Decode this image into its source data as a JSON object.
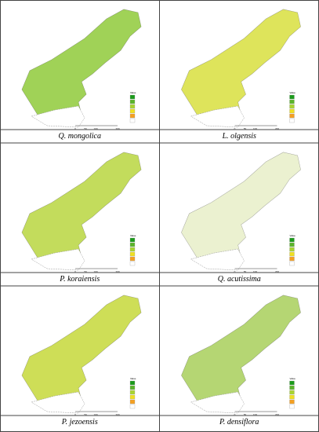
{
  "panels": [
    {
      "caption": "Q. mongolica",
      "legend_title": "Value",
      "scale_labels": [
        "0",
        "50",
        "100",
        "200"
      ]
    },
    {
      "caption": "L. olgensis",
      "legend_title": "Value",
      "scale_labels": [
        "0",
        "50",
        "100",
        "200"
      ]
    },
    {
      "caption": "P. koraiensis",
      "legend_title": "Value",
      "scale_labels": [
        "0",
        "50",
        "100",
        "200"
      ]
    },
    {
      "caption": "Q. acutissima",
      "legend_title": "Value",
      "scale_labels": [
        "0",
        "50",
        "100",
        "200"
      ]
    },
    {
      "caption": "P. jezoensis",
      "legend_title": "Value",
      "scale_labels": [
        "0",
        "50",
        "100",
        "200"
      ]
    },
    {
      "caption": "P. densiflora",
      "legend_title": "Value",
      "scale_labels": [
        "0",
        "50",
        "100",
        "200"
      ]
    }
  ]
}
